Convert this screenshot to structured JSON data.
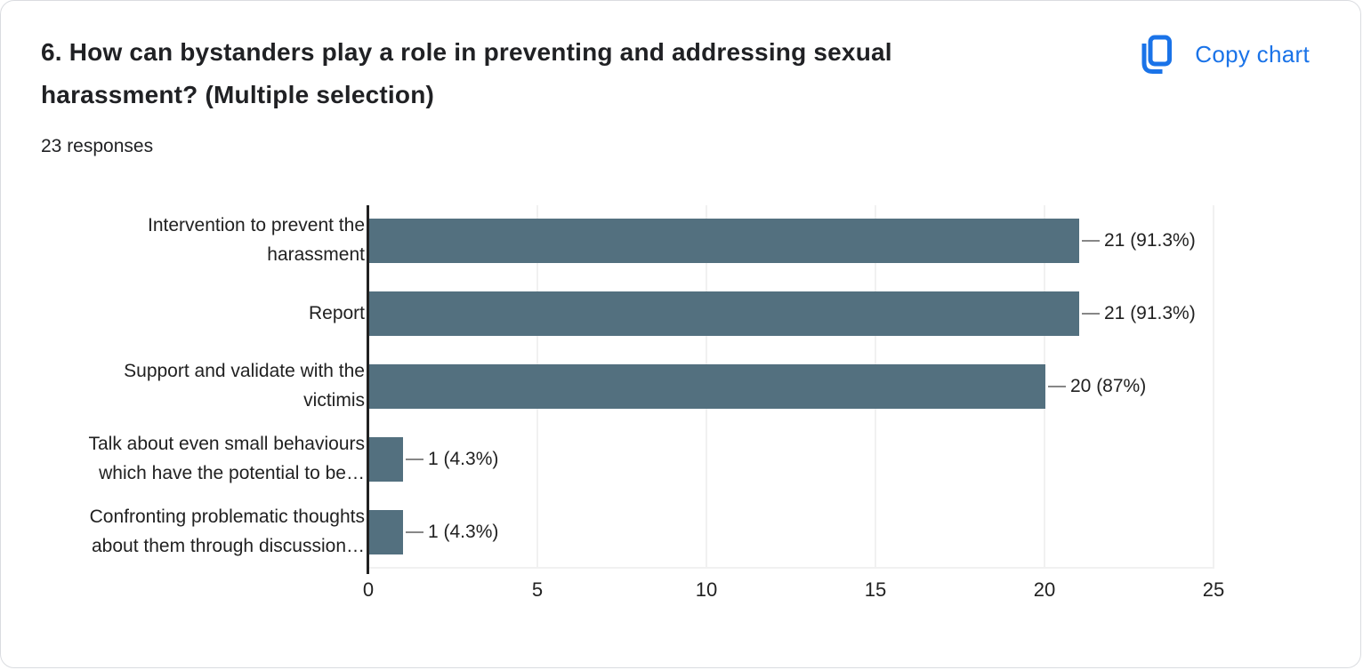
{
  "header": {
    "title_lines": [
      "6. How can bystanders play a role in preventing and addressing sexual",
      "harassment? (Multiple selection)"
    ],
    "responses": "23 responses",
    "copy_button": {
      "label": "Copy chart",
      "icon": "copy-icon",
      "color": "#1a73e8"
    }
  },
  "chart_data": {
    "type": "bar",
    "orientation": "horizontal",
    "title": "",
    "xlabel": "",
    "ylabel": "",
    "categories": [
      "Intervention to prevent the harassment",
      "Report",
      "Support and validate with the victimis",
      "Talk about even small behaviours which have the potential to be…",
      "Confronting problematic thoughts about them through discussion…"
    ],
    "category_lines": [
      [
        "Intervention to prevent the",
        "harassment"
      ],
      [
        "Report"
      ],
      [
        "Support and validate with the",
        "victimis"
      ],
      [
        "Talk about even small behaviours",
        "which have the potential to be…"
      ],
      [
        "Confronting problematic thoughts",
        "about them through discussion…"
      ]
    ],
    "values": [
      21,
      21,
      20,
      1,
      1
    ],
    "value_labels": [
      "21 (91.3%)",
      "21 (91.3%)",
      "20 (87%)",
      "1 (4.3%)",
      "1 (4.3%)"
    ],
    "x_ticks": [
      0,
      5,
      10,
      15,
      20,
      25
    ],
    "xlim": [
      0,
      25
    ],
    "grid": true,
    "legend": "none",
    "bar_color": "#53707f",
    "axis_color": "#212121",
    "gridline_color": "#f1f1f1",
    "connector_color": "#878787"
  }
}
